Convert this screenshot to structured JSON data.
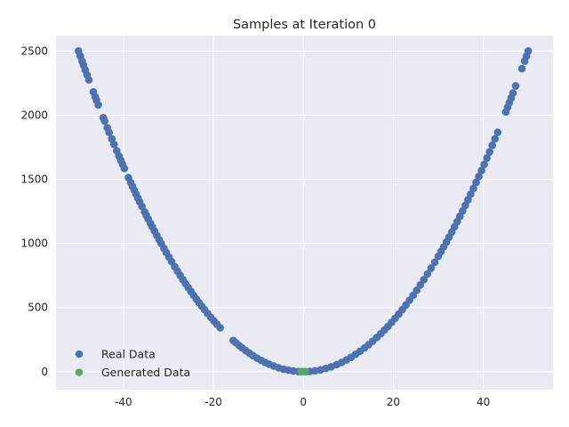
{
  "chart_data": {
    "type": "scatter",
    "title": "Samples at Iteration 0",
    "xlabel": "",
    "ylabel": "",
    "xlim": [
      -55,
      55.5
    ],
    "ylim": [
      -140,
      2620
    ],
    "xticks": [
      -40,
      -20,
      0,
      20,
      40
    ],
    "yticks": [
      0,
      500,
      1000,
      1500,
      2000,
      2500
    ],
    "grid": true,
    "legend_position": "lower-left",
    "background_color": "#eaeaf2",
    "grid_color": "#ffffff",
    "series": [
      {
        "name": "Real Data",
        "color": "#4c72b0",
        "function": "y = x^2",
        "x": [
          -50,
          -49.6,
          -49.2,
          -48.9,
          -48.5,
          -48.1,
          -47.7,
          -46.7,
          -46.3,
          -46.0,
          -45.6,
          -44.5,
          -44.2,
          -43.6,
          -43.2,
          -42.6,
          -42.1,
          -41.5,
          -41.0,
          -40.6,
          -40.2,
          -39.8,
          -38.9,
          -38.4,
          -38.0,
          -37.6,
          -37.2,
          -36.8,
          -36.4,
          -35.9,
          -35.3,
          -34.9,
          -34.5,
          -34.0,
          -33.6,
          -33.1,
          -32.6,
          -32.1,
          -31.6,
          -31.0,
          -30.5,
          -29.9,
          -29.3,
          -28.6,
          -28.0,
          -27.4,
          -26.8,
          -26.2,
          -25.6,
          -25.0,
          -24.4,
          -23.8,
          -23.2,
          -22.6,
          -22.0,
          -21.3,
          -20.6,
          -19.9,
          -19.2,
          -18.5,
          -15.6,
          -15.0,
          -14.3,
          -13.6,
          -12.8,
          -12.0,
          -11.2,
          -10.3,
          -9.4,
          -8.5,
          -7.6,
          -6.6,
          -5.5,
          -4.4,
          -3.3,
          -2.2,
          -1.1,
          0.2,
          1.4,
          2.6,
          3.8,
          5.0,
          6.2,
          7.4,
          8.5,
          9.6,
          10.6,
          11.6,
          12.6,
          13.6,
          14.5,
          15.4,
          16.3,
          17.2,
          18.0,
          18.8,
          19.6,
          20.4,
          21.2,
          22.0,
          22.8,
          23.6,
          24.4,
          25.2,
          26.0,
          26.8,
          27.6,
          28.4,
          29.2,
          30.0,
          30.6,
          31.2,
          31.8,
          32.4,
          33.0,
          33.6,
          34.2,
          34.8,
          35.4,
          36.0,
          36.6,
          37.2,
          37.8,
          38.4,
          39.0,
          39.6,
          40.2,
          40.8,
          41.4,
          42.0,
          42.6,
          43.2,
          45.0,
          45.4,
          45.8,
          46.2,
          46.6,
          47.2,
          48.6,
          49.2,
          49.6,
          50.0
        ],
        "y": [
          2500,
          2460,
          2421,
          2391,
          2352,
          2314,
          2275,
          2181,
          2144,
          2116,
          2079,
          1980,
          1954,
          1901,
          1866,
          1815,
          1772,
          1722,
          1681,
          1648,
          1616,
          1584,
          1513,
          1475,
          1444,
          1414,
          1384,
          1354,
          1325,
          1289,
          1246,
          1218,
          1190,
          1156,
          1129,
          1096,
          1063,
          1030,
          999,
          961,
          930,
          894,
          858,
          818,
          784,
          751,
          718,
          686,
          655,
          625,
          595,
          566,
          538,
          511,
          484,
          454,
          424,
          396,
          369,
          342,
          243,
          225,
          204,
          185,
          164,
          144,
          125,
          106,
          88,
          72,
          58,
          44,
          30,
          19,
          11,
          5,
          1,
          0,
          2,
          7,
          14,
          25,
          38,
          55,
          72,
          92,
          112,
          135,
          159,
          185,
          210,
          237,
          266,
          296,
          324,
          353,
          384,
          416,
          449,
          484,
          520,
          557,
          595,
          635,
          676,
          718,
          762,
          807,
          853,
          900,
          936,
          973,
          1011,
          1050,
          1089,
          1129,
          1170,
          1211,
          1253,
          1296,
          1340,
          1384,
          1429,
          1475,
          1521,
          1568,
          1616,
          1665,
          1714,
          1764,
          1815,
          1866,
          2025,
          2061,
          2098,
          2134,
          2172,
          2228,
          2362,
          2421,
          2460,
          2500
        ]
      },
      {
        "name": "Generated Data",
        "color": "#55a868",
        "x": [
          -0.5,
          -0.3,
          -0.1,
          0.1,
          0.3,
          0.5
        ],
        "y": [
          0,
          0,
          0,
          0,
          0,
          0
        ]
      }
    ]
  }
}
